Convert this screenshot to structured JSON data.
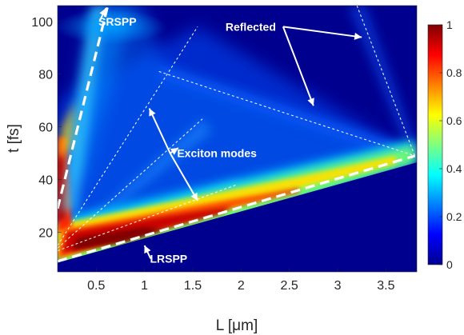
{
  "chart_data": {
    "type": "heatmap",
    "title": "",
    "xlabel": "L [μm]",
    "ylabel": "t [fs]",
    "xlim": [
      0.1,
      3.82
    ],
    "ylim": [
      5,
      106
    ],
    "xticks": [
      0.5,
      1,
      1.5,
      2,
      2.5,
      3,
      3.5
    ],
    "xtick_labels": [
      "0.5",
      "1",
      "1.5",
      "2",
      "2.5",
      "3",
      "3.5"
    ],
    "yticks": [
      20,
      40,
      60,
      80,
      100
    ],
    "ytick_labels": [
      "20",
      "40",
      "60",
      "80",
      "100"
    ],
    "colormap": "jet",
    "colorbar": {
      "range": [
        0,
        1
      ],
      "ticks": [
        0,
        0.2,
        0.4,
        0.6,
        0.8,
        1
      ],
      "tick_labels": [
        "0",
        "0.2",
        "0.4",
        "0.6",
        "0.8",
        "1"
      ]
    },
    "grid": false,
    "modes": [
      {
        "name": "LRSPP",
        "style": "thick-dashed-white",
        "points": [
          [
            0.1,
            9
          ],
          [
            3.8,
            49
          ]
        ]
      },
      {
        "name": "SRSPP",
        "style": "thick-dashed-white",
        "points": [
          [
            0.1,
            29
          ],
          [
            0.62,
            106
          ]
        ]
      },
      {
        "name": "Exciton mode 1",
        "style": "thin-dotted-white",
        "points": [
          [
            0.1,
            15
          ],
          [
            1.55,
            98
          ]
        ]
      },
      {
        "name": "Exciton mode 2",
        "style": "thin-dotted-white",
        "points": [
          [
            0.1,
            14
          ],
          [
            1.6,
            63
          ]
        ]
      },
      {
        "name": "Exciton mode 3",
        "style": "thin-dotted-white",
        "points": [
          [
            0.1,
            13
          ],
          [
            1.95,
            38
          ]
        ]
      },
      {
        "name": "Reflected 1",
        "style": "thin-dotted-white",
        "points": [
          [
            1.15,
            81
          ],
          [
            3.8,
            49
          ]
        ]
      },
      {
        "name": "Reflected 2",
        "style": "thin-dotted-white",
        "points": [
          [
            3.2,
            106
          ],
          [
            3.8,
            49
          ]
        ]
      }
    ],
    "annotations": [
      {
        "text": "SRSPP",
        "x": 0.72,
        "y": 100,
        "arrow_to": [
          0.6,
          105
        ]
      },
      {
        "text": "Reflected",
        "x": 2.1,
        "y": 98,
        "arrows_to": [
          [
            3.25,
            94
          ],
          [
            2.75,
            68
          ]
        ]
      },
      {
        "text": "Exciton modes",
        "x": 1.75,
        "y": 50,
        "arrows_to": [
          [
            1.05,
            67
          ],
          [
            1.35,
            52
          ],
          [
            1.55,
            32
          ]
        ]
      },
      {
        "text": "LRSPP",
        "x": 1.25,
        "y": 10,
        "arrow_to": [
          1.0,
          15
        ]
      }
    ]
  }
}
